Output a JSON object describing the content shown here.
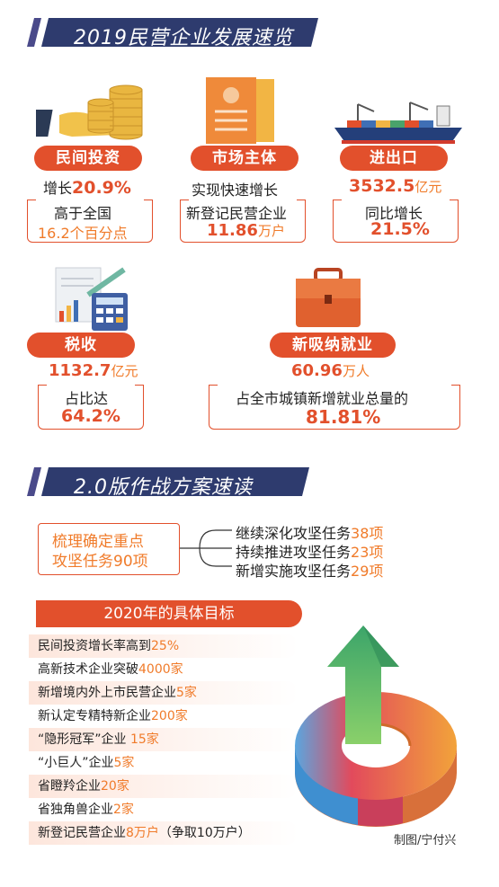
{
  "section1": {
    "title": "2019民营企业发展速览"
  },
  "invest": {
    "label": "民间投资",
    "growth_prefix": "增长",
    "growth_value": "20.9%",
    "line2": "高于全国",
    "line3": "16.2个百分点"
  },
  "market": {
    "label": "市场主体",
    "line1": "实现快速增长",
    "line2": "新登记民营企业",
    "line3_value": "11.86",
    "line3_unit": "万户"
  },
  "trade": {
    "label": "进出口",
    "value": "3532.5",
    "unit": "亿元",
    "line2": "同比增长",
    "line3": "21.5%"
  },
  "tax": {
    "label": "税收",
    "value": "1132.7",
    "unit": "亿元",
    "line2": "占比达",
    "line3": "64.2%"
  },
  "jobs": {
    "label": "新吸纳就业",
    "value": "60.96",
    "unit": "万人",
    "line2": "占全市城镇新增就业总量的",
    "line3": "81.81%"
  },
  "section2": {
    "title": "2.0版作战方案速读"
  },
  "plan": {
    "box_line1": "梳理确定重点",
    "box_line2": "攻坚任务90项",
    "tasks": [
      {
        "text": "继续深化攻坚任务",
        "value": "38项"
      },
      {
        "text": "持续推进攻坚任务",
        "value": "23项"
      },
      {
        "text": "新增实施攻坚任务",
        "value": "29项"
      }
    ]
  },
  "goals": {
    "title": "2020年的具体目标",
    "items": [
      {
        "text": "民间投资增长率高到",
        "value": "25%",
        "suffix": ""
      },
      {
        "text": "高新技术企业突破",
        "value": "4000家",
        "suffix": ""
      },
      {
        "text": "新增境内外上市民营企业",
        "value": "5家",
        "suffix": ""
      },
      {
        "text": "新认定专精特新企业",
        "value": "200家",
        "suffix": ""
      },
      {
        "text": "“隐形冠军”企业 ",
        "value": "15家",
        "suffix": ""
      },
      {
        "text": "“小巨人”企业",
        "value": "5家",
        "suffix": ""
      },
      {
        "text": "省瞪羚企业",
        "value": "20家",
        "suffix": ""
      },
      {
        "text": "省独角兽企业",
        "value": "2家",
        "suffix": ""
      },
      {
        "text": "新登记民营企业",
        "value": "8万户",
        "suffix": "（争取10万户）"
      }
    ]
  },
  "credit": "制图/宁付兴",
  "colors": {
    "accent": "#e2502c",
    "navy": "#2e3b6e",
    "orange": "#f07b2a"
  }
}
